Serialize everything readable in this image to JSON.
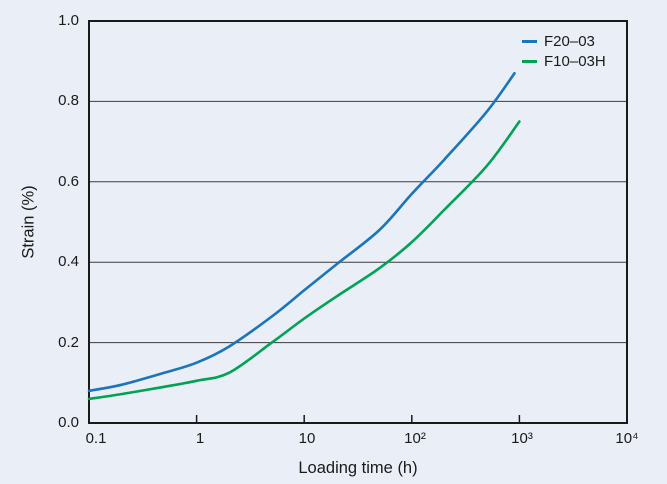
{
  "page": {
    "background_color": "#eaeef6",
    "axis_color": "#1a1a1a",
    "grid_color": "#3c3c3c"
  },
  "chart_data": {
    "type": "line",
    "title": "",
    "xlabel": "Loading time (h)",
    "ylabel": "Strain (%)",
    "x_scale": "log",
    "xlim": [
      0.1,
      10000
    ],
    "ylim": [
      0.0,
      1.0
    ],
    "x_tick_values": [
      0.1,
      1,
      10,
      100,
      1000,
      10000
    ],
    "x_tick_labels": [
      "0.1",
      "1",
      "10",
      "10²",
      "10³",
      "10⁴"
    ],
    "x_minor_ticks": [
      1,
      10,
      100,
      1000
    ],
    "y_tick_values": [
      0.0,
      0.2,
      0.4,
      0.6,
      0.8,
      1.0
    ],
    "y_tick_labels": [
      "0.0",
      "0.2",
      "0.4",
      "0.6",
      "0.8",
      "1.0"
    ],
    "grid": "horizontal",
    "grid_values": [
      0.2,
      0.4,
      0.6,
      0.8
    ],
    "legend_position": "top-right-inside",
    "series": [
      {
        "name": "F20–03",
        "color": "#1a75ba",
        "x": [
          0.1,
          0.2,
          0.5,
          1,
          2,
          5,
          10,
          20,
          50,
          100,
          200,
          500,
          900
        ],
        "y": [
          0.08,
          0.095,
          0.125,
          0.15,
          0.19,
          0.265,
          0.33,
          0.395,
          0.48,
          0.57,
          0.655,
          0.775,
          0.87
        ]
      },
      {
        "name": "F10–03H",
        "color": "#00a254",
        "x": [
          0.1,
          0.2,
          0.5,
          1,
          2,
          5,
          10,
          20,
          50,
          100,
          200,
          500,
          1000
        ],
        "y": [
          0.06,
          0.072,
          0.09,
          0.105,
          0.125,
          0.2,
          0.26,
          0.315,
          0.385,
          0.45,
          0.53,
          0.64,
          0.75
        ]
      }
    ]
  }
}
